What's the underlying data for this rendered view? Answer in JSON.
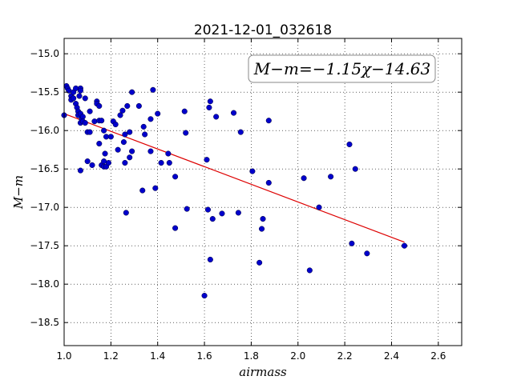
{
  "chart_data": {
    "type": "scatter",
    "title": "2021-12-01_032618",
    "xlabel": "airmass",
    "ylabel": "M−m",
    "annotation": "M−m=−1.15χ−14.63",
    "xlim": [
      1.0,
      2.7
    ],
    "ylim": [
      -18.8,
      -14.8
    ],
    "x_ticks": [
      "1.0",
      "1.2",
      "1.4",
      "1.6",
      "1.8",
      "2.0",
      "2.2",
      "2.4",
      "2.6"
    ],
    "y_ticks": [
      "−15.0",
      "−15.5",
      "−16.0",
      "−16.5",
      "−17.0",
      "−17.5",
      "−18.0",
      "−18.5"
    ],
    "grid": true,
    "colors": {
      "points": "#0000cc",
      "fit": "#dd0000"
    },
    "fit": {
      "slope": -1.15,
      "intercept": -14.63,
      "x_range": [
        1.0,
        2.455
      ]
    },
    "points": [
      [
        1.0,
        -15.8
      ],
      [
        1.01,
        -15.42
      ],
      [
        1.015,
        -15.45
      ],
      [
        1.02,
        -15.48
      ],
      [
        1.03,
        -15.55
      ],
      [
        1.03,
        -15.6
      ],
      [
        1.04,
        -15.5
      ],
      [
        1.04,
        -15.58
      ],
      [
        1.05,
        -15.45
      ],
      [
        1.05,
        -15.65
      ],
      [
        1.055,
        -15.7
      ],
      [
        1.06,
        -15.75
      ],
      [
        1.06,
        -15.8
      ],
      [
        1.065,
        -15.55
      ],
      [
        1.07,
        -15.45
      ],
      [
        1.07,
        -15.48
      ],
      [
        1.07,
        -15.78
      ],
      [
        1.07,
        -15.9
      ],
      [
        1.075,
        -15.85
      ],
      [
        1.08,
        -15.82
      ],
      [
        1.08,
        -15.88
      ],
      [
        1.09,
        -15.58
      ],
      [
        1.09,
        -15.9
      ],
      [
        1.1,
        -16.02
      ],
      [
        1.1,
        -16.4
      ],
      [
        1.07,
        -16.52
      ],
      [
        1.11,
        -15.75
      ],
      [
        1.11,
        -16.02
      ],
      [
        1.12,
        -16.45
      ],
      [
        1.13,
        -15.88
      ],
      [
        1.14,
        -15.62
      ],
      [
        1.14,
        -15.65
      ],
      [
        1.15,
        -15.68
      ],
      [
        1.15,
        -16.17
      ],
      [
        1.15,
        -15.87
      ],
      [
        1.16,
        -15.87
      ],
      [
        1.16,
        -16.45
      ],
      [
        1.17,
        -16.0
      ],
      [
        1.17,
        -16.4
      ],
      [
        1.17,
        -16.47
      ],
      [
        1.175,
        -16.3
      ],
      [
        1.18,
        -16.08
      ],
      [
        1.18,
        -16.47
      ],
      [
        1.19,
        -16.42
      ],
      [
        1.2,
        -16.08
      ],
      [
        1.21,
        -15.88
      ],
      [
        1.22,
        -15.92
      ],
      [
        1.23,
        -16.25
      ],
      [
        1.24,
        -15.8
      ],
      [
        1.25,
        -15.74
      ],
      [
        1.255,
        -16.15
      ],
      [
        1.26,
        -16.42
      ],
      [
        1.26,
        -16.05
      ],
      [
        1.265,
        -17.07
      ],
      [
        1.27,
        -15.68
      ],
      [
        1.28,
        -16.02
      ],
      [
        1.28,
        -16.35
      ],
      [
        1.29,
        -15.5
      ],
      [
        1.29,
        -16.27
      ],
      [
        1.32,
        -15.68
      ],
      [
        1.335,
        -16.78
      ],
      [
        1.34,
        -15.95
      ],
      [
        1.345,
        -16.05
      ],
      [
        1.37,
        -15.85
      ],
      [
        1.37,
        -16.27
      ],
      [
        1.38,
        -15.47
      ],
      [
        1.39,
        -16.75
      ],
      [
        1.4,
        -15.78
      ],
      [
        1.415,
        -16.42
      ],
      [
        1.445,
        -16.3
      ],
      [
        1.45,
        -16.42
      ],
      [
        1.475,
        -16.6
      ],
      [
        1.475,
        -17.27
      ],
      [
        1.515,
        -15.75
      ],
      [
        1.52,
        -16.03
      ],
      [
        1.525,
        -17.02
      ],
      [
        1.6,
        -18.15
      ],
      [
        1.61,
        -16.38
      ],
      [
        1.615,
        -17.03
      ],
      [
        1.62,
        -15.7
      ],
      [
        1.625,
        -15.62
      ],
      [
        1.625,
        -17.68
      ],
      [
        1.635,
        -17.15
      ],
      [
        1.65,
        -15.82
      ],
      [
        1.675,
        -17.08
      ],
      [
        1.725,
        -15.77
      ],
      [
        1.745,
        -17.07
      ],
      [
        1.755,
        -16.02
      ],
      [
        1.805,
        -16.53
      ],
      [
        1.835,
        -17.72
      ],
      [
        1.845,
        -17.28
      ],
      [
        1.85,
        -17.15
      ],
      [
        1.875,
        -16.68
      ],
      [
        1.875,
        -15.87
      ],
      [
        2.025,
        -16.62
      ],
      [
        2.05,
        -17.82
      ],
      [
        2.09,
        -17.0
      ],
      [
        2.14,
        -16.6
      ],
      [
        2.22,
        -16.18
      ],
      [
        2.23,
        -17.47
      ],
      [
        2.245,
        -16.5
      ],
      [
        2.295,
        -17.6
      ],
      [
        2.455,
        -17.5
      ]
    ]
  }
}
